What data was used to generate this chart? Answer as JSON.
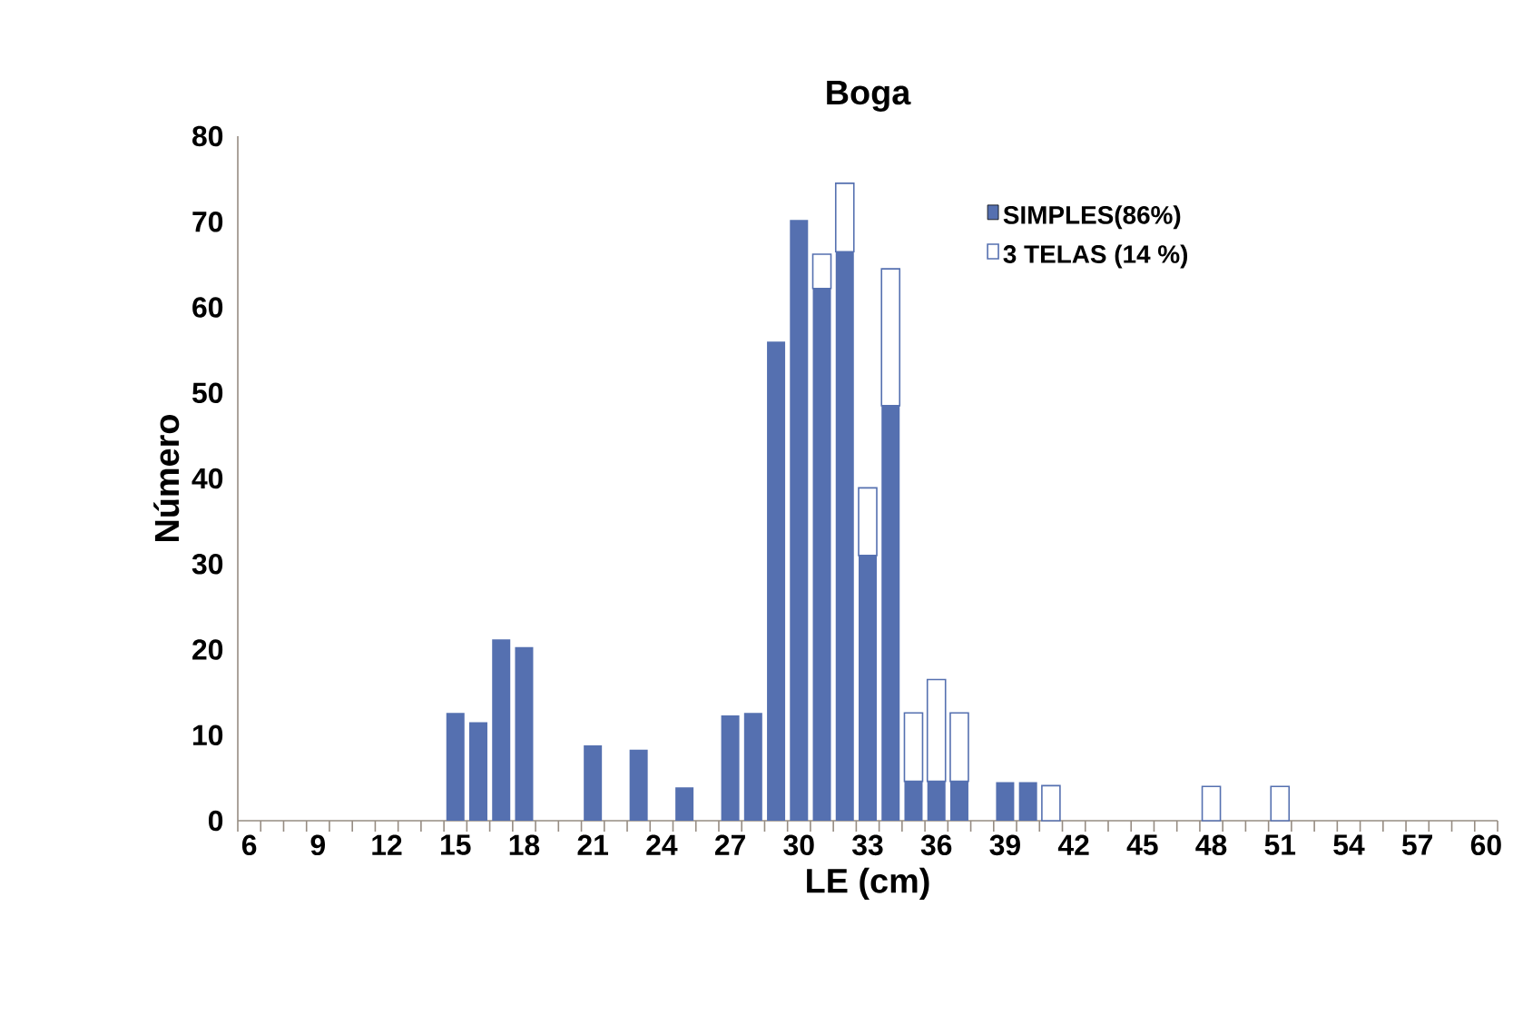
{
  "chart_data": {
    "type": "bar",
    "title": "Boga",
    "xlabel": "LE (cm)",
    "ylabel": "Número",
    "categories": [
      "6",
      null,
      null,
      "9",
      null,
      null,
      "12",
      null,
      null,
      "15",
      null,
      null,
      "18",
      null,
      null,
      "21",
      null,
      null,
      "24",
      null,
      null,
      "27",
      null,
      null,
      "30",
      null,
      null,
      "33",
      null,
      null,
      "36",
      null,
      null,
      "39",
      null,
      null,
      "42",
      null,
      null,
      "45",
      null,
      null,
      "48",
      null,
      null,
      "51",
      null,
      null,
      "54",
      null,
      null,
      "57",
      null,
      null,
      "60"
    ],
    "series": [
      {
        "name": "SIMPLES(86%)",
        "color": "#5570b0",
        "values": [
          null,
          null,
          null,
          null,
          null,
          null,
          null,
          null,
          null,
          12.6,
          11.5,
          21.2,
          20.3,
          null,
          null,
          8.8,
          null,
          8.3,
          null,
          3.9,
          null,
          12.3,
          12.6,
          56,
          70.2,
          62.2,
          66.5,
          31,
          48.5,
          4.6,
          4.6,
          4.6,
          null,
          4.5,
          4.5,
          null,
          null,
          null,
          null,
          null,
          null,
          null,
          null,
          null,
          null,
          null,
          null,
          null,
          null,
          null,
          null,
          null,
          null,
          null,
          null
        ]
      },
      {
        "name": "3 TELAS (14 %)",
        "color": "#ffffff",
        "values": [
          null,
          null,
          null,
          null,
          null,
          null,
          null,
          null,
          null,
          null,
          null,
          null,
          null,
          null,
          null,
          null,
          null,
          null,
          null,
          null,
          null,
          null,
          null,
          null,
          null,
          4,
          8,
          7.9,
          16,
          8,
          11.9,
          8,
          null,
          null,
          null,
          4.1,
          null,
          null,
          null,
          null,
          null,
          null,
          4,
          null,
          null,
          4,
          null,
          null,
          null,
          null,
          null,
          null,
          null,
          null,
          null
        ]
      }
    ],
    "stacked": true,
    "ylim": [
      0,
      80
    ],
    "yticks": [
      0,
      10,
      20,
      30,
      40,
      50,
      60,
      70,
      80
    ],
    "legend": "top right",
    "grid": false
  }
}
